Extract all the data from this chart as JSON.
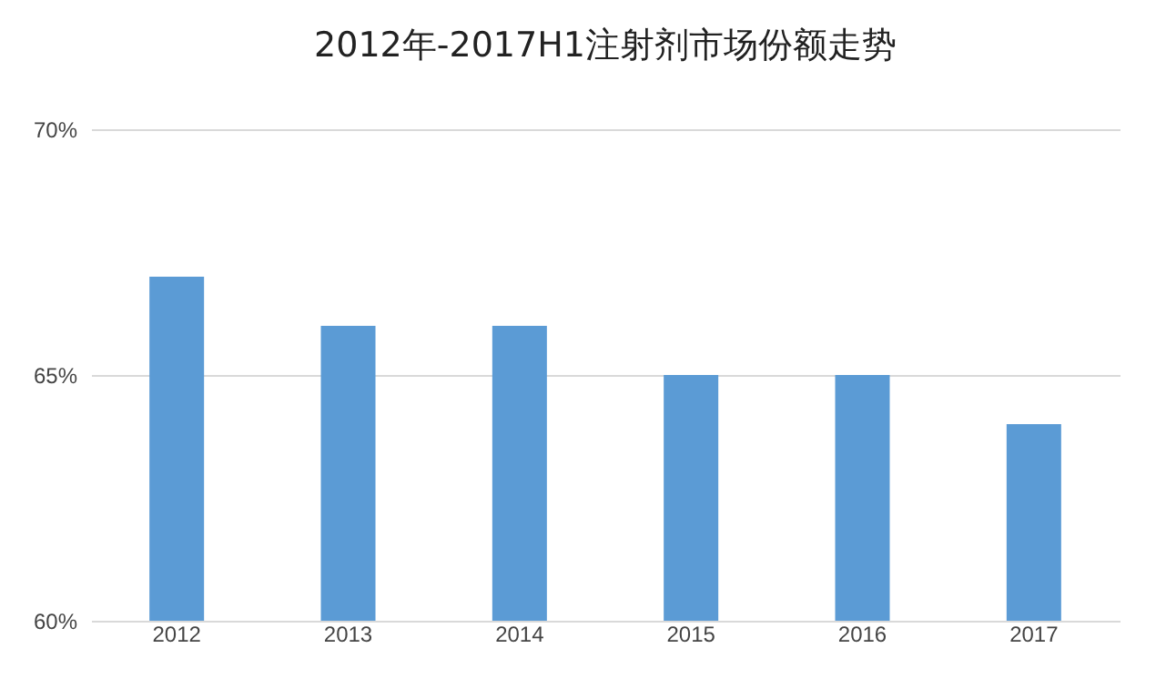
{
  "chart_data": {
    "type": "bar",
    "title": "2012年-2017H1注射剂市场份额走势",
    "categories": [
      "2012",
      "2013",
      "2014",
      "2015",
      "2016",
      "2017"
    ],
    "values": [
      67,
      66,
      66,
      65,
      65,
      64
    ],
    "color": "#5b9bd5",
    "ylim": [
      60,
      70
    ],
    "yticks": [
      {
        "value": 60,
        "label": "60%"
      },
      {
        "value": 65,
        "label": "65%"
      },
      {
        "value": 70,
        "label": "70%"
      }
    ],
    "grid": "y",
    "legend": false
  }
}
